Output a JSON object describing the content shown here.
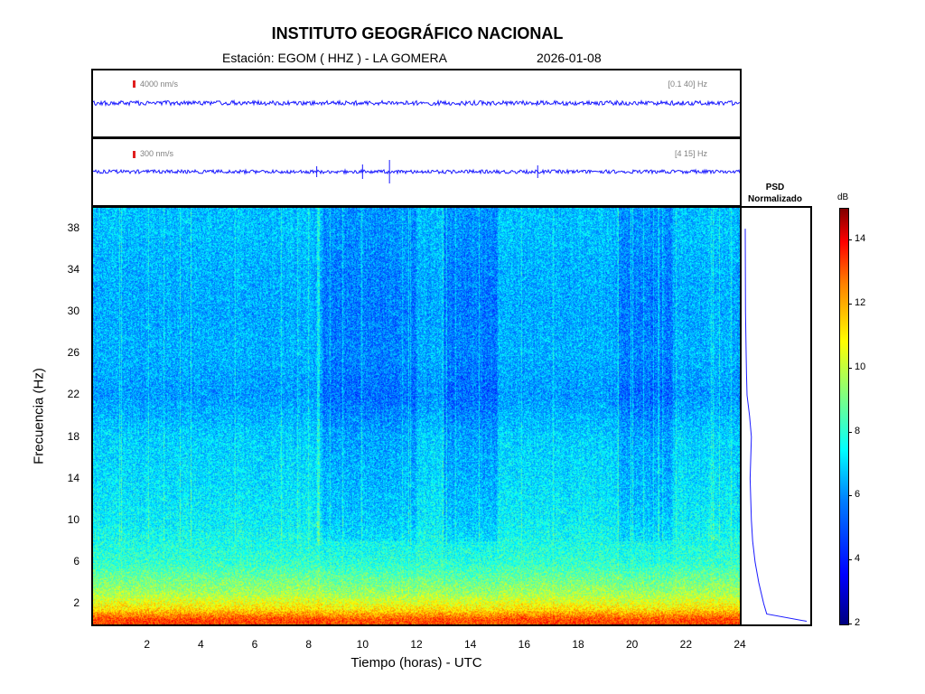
{
  "header": {
    "title": "INSTITUTO GEOGRÁFICO NACIONAL",
    "station": "Estación:  EGOM ( HHZ ) - LA GOMERA",
    "date": "2026-01-08"
  },
  "traces": [
    {
      "scale": "4000 nm/s",
      "band": "[0.1 40] Hz"
    },
    {
      "scale": "300 nm/s",
      "band": "[4 15] Hz"
    }
  ],
  "psd": {
    "title_line1": "PSD",
    "title_line2": "Normalizado"
  },
  "colorbar": {
    "unit": "dB",
    "ticks": [
      "14",
      "12",
      "10",
      "8",
      "6",
      "4",
      "2"
    ]
  },
  "axes": {
    "xlabel": "Tiempo (horas) - UTC",
    "ylabel": "Frecuencia  (Hz)",
    "xticks": [
      "2",
      "4",
      "6",
      "8",
      "10",
      "12",
      "14",
      "16",
      "18",
      "20",
      "22",
      "24"
    ],
    "yticks": [
      "38",
      "34",
      "30",
      "26",
      "22",
      "18",
      "14",
      "10",
      "6",
      "2"
    ]
  },
  "chart_data": {
    "type": "heatmap",
    "title": "INSTITUTO GEOGRÁFICO NACIONAL",
    "xlabel": "Tiempo (horas) - UTC",
    "ylabel": "Frecuencia  (Hz)",
    "xlim": [
      0,
      24
    ],
    "ylim": [
      0,
      40
    ],
    "x_ticks": [
      2,
      4,
      6,
      8,
      10,
      12,
      14,
      16,
      18,
      20,
      22,
      24
    ],
    "y_ticks": [
      2,
      6,
      10,
      14,
      18,
      22,
      26,
      30,
      34,
      38
    ],
    "colorbar": {
      "label": "dB",
      "range": [
        2,
        15
      ],
      "ticks": [
        2,
        4,
        6,
        8,
        10,
        12,
        14
      ],
      "colormap": "jet"
    },
    "background_level_db": [
      {
        "freq": 0.5,
        "db": 12.5
      },
      {
        "freq": 1.5,
        "db": 10.5
      },
      {
        "freq": 3,
        "db": 9
      },
      {
        "freq": 6,
        "db": 7.5
      },
      {
        "freq": 10,
        "db": 6.8
      },
      {
        "freq": 14,
        "db": 6.5
      },
      {
        "freq": 18,
        "db": 6.3
      },
      {
        "freq": 22,
        "db": 5.6
      },
      {
        "freq": 26,
        "db": 5.9
      },
      {
        "freq": 30,
        "db": 5.8
      },
      {
        "freq": 34,
        "db": 5.9
      },
      {
        "freq": 38,
        "db": 6.1
      }
    ],
    "psd_normalized": [
      {
        "freq": 0.3,
        "value": 1.0
      },
      {
        "freq": 1,
        "value": 0.35
      },
      {
        "freq": 2,
        "value": 0.3
      },
      {
        "freq": 4,
        "value": 0.22
      },
      {
        "freq": 6,
        "value": 0.16
      },
      {
        "freq": 8,
        "value": 0.12
      },
      {
        "freq": 10,
        "value": 0.1
      },
      {
        "freq": 12,
        "value": 0.09
      },
      {
        "freq": 14,
        "value": 0.08
      },
      {
        "freq": 16,
        "value": 0.09
      },
      {
        "freq": 18,
        "value": 0.1
      },
      {
        "freq": 20,
        "value": 0.07
      },
      {
        "freq": 22,
        "value": 0.03
      },
      {
        "freq": 24,
        "value": 0.02
      },
      {
        "freq": 26,
        "value": 0.015
      },
      {
        "freq": 30,
        "value": 0.005
      },
      {
        "freq": 38,
        "value": 0.0
      }
    ],
    "trace_events_hours": [
      8.3,
      10.0,
      11.0,
      16.5
    ]
  }
}
